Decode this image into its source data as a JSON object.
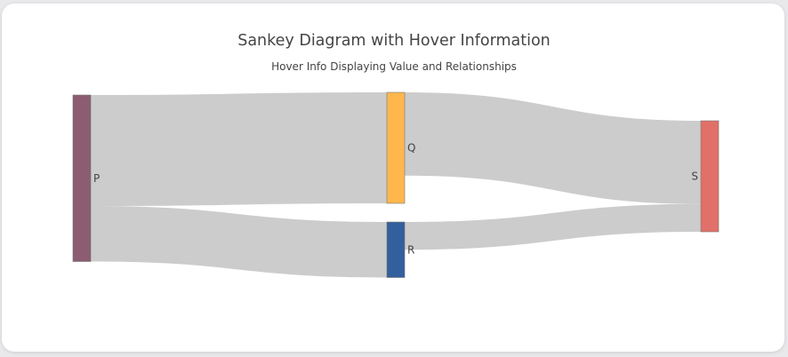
{
  "chart_data": {
    "type": "sankey",
    "title": "Sankey Diagram with Hover Information",
    "subtitle": "Hover Info Displaying Value and Relationships",
    "nodes": [
      {
        "id": "P",
        "label": "P",
        "color": "#8b5c72"
      },
      {
        "id": "Q",
        "label": "Q",
        "color": "#ffb74d"
      },
      {
        "id": "R",
        "label": "R",
        "color": "#335f9c"
      },
      {
        "id": "S",
        "label": "S",
        "color": "#e07068"
      }
    ],
    "links": [
      {
        "source": "P",
        "target": "Q",
        "value": 10
      },
      {
        "source": "P",
        "target": "R",
        "value": 5
      },
      {
        "source": "Q",
        "target": "S",
        "value": 7.5
      },
      {
        "source": "R",
        "target": "S",
        "value": 2.5
      }
    ],
    "link_color": "#cccccc"
  }
}
